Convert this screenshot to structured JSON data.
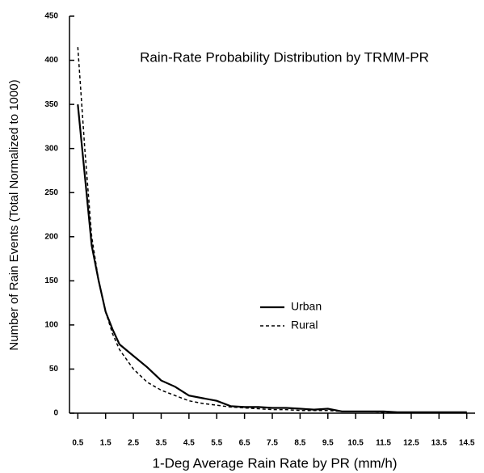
{
  "chart_data": {
    "type": "line",
    "title": "Rain-Rate Probability Distribution by TRMM-PR",
    "xlabel": "1-Deg Average Rain Rate by PR (mm/h)",
    "ylabel": "Number of Rain Events (Total Normalized to 1000)",
    "x": [
      0.5,
      0.75,
      1,
      1.25,
      1.5,
      1.75,
      2,
      2.5,
      3,
      3.5,
      4,
      4.5,
      5,
      5.5,
      6,
      6.5,
      7,
      7.5,
      8,
      8.5,
      9,
      9.5,
      10,
      10.5,
      11,
      11.5,
      12,
      12.5,
      13,
      13.5,
      14,
      14.5
    ],
    "series": [
      {
        "name": "Urban",
        "color": "#000000",
        "style": "solid",
        "values": [
          350,
          270,
          190,
          150,
          115,
          95,
          78,
          65,
          52,
          37,
          30,
          20,
          17,
          14,
          8,
          7,
          7,
          6,
          6,
          5,
          4,
          5,
          2,
          2,
          2,
          2,
          1,
          1,
          1,
          1,
          1,
          1
        ]
      },
      {
        "name": "Rural",
        "color": "#000000",
        "style": "dashed",
        "values": [
          415,
          300,
          200,
          150,
          115,
          90,
          72,
          50,
          35,
          26,
          20,
          14,
          11,
          9,
          7,
          6,
          5,
          4,
          4,
          3,
          3,
          3,
          2,
          2,
          2,
          1,
          1,
          1,
          1,
          1,
          1,
          1
        ]
      }
    ],
    "xlim": [
      0.2,
      14.8
    ],
    "ylim": [
      0,
      450
    ],
    "xticks": [
      0.5,
      1.5,
      2.5,
      3.5,
      4.5,
      5.5,
      6.5,
      7.5,
      8.5,
      9.5,
      10.5,
      11.5,
      12.5,
      13.5,
      14.5
    ],
    "yticks": [
      0,
      50,
      100,
      150,
      200,
      250,
      300,
      350,
      400,
      450
    ],
    "grid": false
  }
}
